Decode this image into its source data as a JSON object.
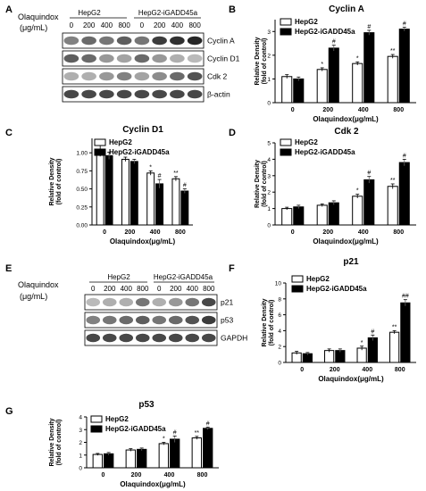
{
  "colors": {
    "hepg2": "#ffffff",
    "gadd": "#000000",
    "axis": "#000000"
  },
  "panel_letters": [
    "A",
    "B",
    "C",
    "D",
    "E",
    "F",
    "G"
  ],
  "blot_A": {
    "treatment_label": "Olaquindox",
    "unit_label": "(μg/mL)",
    "group_labels": [
      "HepG2",
      "HepG2-iGADD45a"
    ],
    "doses": [
      "0",
      "200",
      "400",
      "800",
      "0",
      "200",
      "400",
      "800"
    ],
    "bands": [
      "Cyclin A",
      "Cyclin D1",
      "Cdk 2",
      "β-actin"
    ]
  },
  "blot_E": {
    "treatment_label": "Olaquindox",
    "unit_label": "(μg/mL)",
    "group_labels": [
      "HepG2",
      "HepG2-iGADD45a"
    ],
    "doses": [
      "0",
      "200",
      "400",
      "800",
      "0",
      "200",
      "400",
      "800"
    ],
    "bands": [
      "p21",
      "p53",
      "GAPDH"
    ]
  },
  "chart_data": [
    {
      "panel": "B",
      "type": "bar",
      "title": "Cyclin A",
      "categories": [
        "0",
        "200",
        "400",
        "800"
      ],
      "xlabel": "Olaquindox(μg/mL)",
      "ylabel": "Relative Density",
      "ylabel2": "(fold of control)",
      "ylim": [
        0,
        3.5
      ],
      "yticks": [
        0,
        1,
        2,
        3
      ],
      "legend": "top-left",
      "series": [
        {
          "name": "HepG2",
          "values": [
            1.1,
            1.4,
            1.65,
            1.95
          ],
          "errors": [
            0.08,
            0.07,
            0.07,
            0.08
          ],
          "marks": [
            "",
            "*",
            "*",
            "**"
          ]
        },
        {
          "name": "HepG2-iGADD45a",
          "values": [
            1.0,
            2.3,
            2.95,
            3.1
          ],
          "errors": [
            0.08,
            0.12,
            0.1,
            0.08
          ],
          "marks": [
            "",
            "#",
            "#",
            "#"
          ]
        }
      ]
    },
    {
      "panel": "C",
      "type": "bar",
      "title": "Cyclin D1",
      "categories": [
        "0",
        "200",
        "400",
        "800"
      ],
      "xlabel": "Olaquindox(μg/mL)",
      "ylabel": "Relative Density",
      "ylabel2": "(fold of control)",
      "ylim": [
        0,
        1.2
      ],
      "yticks": [
        0,
        0.25,
        0.5,
        0.75,
        1.0
      ],
      "ytick_labels": [
        "0.00",
        "0.25",
        "0.50",
        "0.75",
        "1.00"
      ],
      "legend": "top-left",
      "series": [
        {
          "name": "HepG2",
          "values": [
            1.03,
            0.91,
            0.72,
            0.64
          ],
          "errors": [
            0.08,
            0.03,
            0.03,
            0.03
          ],
          "marks": [
            "",
            "",
            "*",
            "**"
          ]
        },
        {
          "name": "HepG2-iGADD45a",
          "values": [
            0.96,
            0.88,
            0.57,
            0.47
          ],
          "errors": [
            0.05,
            0.03,
            0.06,
            0.03
          ],
          "marks": [
            "",
            "",
            "#",
            "#"
          ]
        }
      ]
    },
    {
      "panel": "D",
      "type": "bar",
      "title": "Cdk 2",
      "categories": [
        "0",
        "200",
        "400",
        "800"
      ],
      "xlabel": "Olaquindox(μg/mL)",
      "ylabel": "Relative Density",
      "ylabel2": "(fold of control)",
      "ylim": [
        0,
        5
      ],
      "yticks": [
        0,
        1,
        2,
        3,
        4,
        5
      ],
      "legend": "top-left",
      "series": [
        {
          "name": "HepG2",
          "values": [
            1.0,
            1.2,
            1.75,
            2.35
          ],
          "errors": [
            0.08,
            0.08,
            0.12,
            0.15
          ],
          "marks": [
            "",
            "",
            "*",
            "**"
          ]
        },
        {
          "name": "HepG2-iGADD45a",
          "values": [
            1.1,
            1.35,
            2.75,
            3.8
          ],
          "errors": [
            0.1,
            0.12,
            0.2,
            0.2
          ],
          "marks": [
            "",
            "",
            "#",
            "#"
          ]
        }
      ]
    },
    {
      "panel": "F",
      "type": "bar",
      "title": "p21",
      "categories": [
        "0",
        "200",
        "400",
        "800"
      ],
      "xlabel": "Olaquindox(μg/mL)",
      "ylabel": "Relative Density",
      "ylabel2": "(fold of control)",
      "ylim": [
        0,
        10
      ],
      "yticks": [
        0,
        2,
        4,
        6,
        8,
        10
      ],
      "legend": "top-left",
      "series": [
        {
          "name": "HepG2",
          "values": [
            1.2,
            1.5,
            1.8,
            3.8
          ],
          "errors": [
            0.2,
            0.2,
            0.25,
            0.2
          ],
          "marks": [
            "",
            "",
            "*",
            "**"
          ]
        },
        {
          "name": "HepG2-iGADD45a",
          "values": [
            1.1,
            1.5,
            3.1,
            7.5
          ],
          "errors": [
            0.15,
            0.2,
            0.35,
            0.4
          ],
          "marks": [
            "",
            "",
            "#",
            "##"
          ]
        }
      ]
    },
    {
      "panel": "G",
      "type": "bar",
      "title": "p53",
      "categories": [
        "0",
        "200",
        "400",
        "800"
      ],
      "xlabel": "Olaquindox(μg/mL)",
      "ylabel": "Relative Density",
      "ylabel2": "(fold of control)",
      "ylim": [
        0,
        4
      ],
      "yticks": [
        0,
        1,
        2,
        3,
        4
      ],
      "legend": "top-left",
      "series": [
        {
          "name": "HepG2",
          "values": [
            1.05,
            1.4,
            1.9,
            2.35
          ],
          "errors": [
            0.08,
            0.1,
            0.1,
            0.12
          ],
          "marks": [
            "",
            "",
            "*",
            "**"
          ]
        },
        {
          "name": "HepG2-iGADD45a",
          "values": [
            1.1,
            1.45,
            2.25,
            3.1
          ],
          "errors": [
            0.1,
            0.1,
            0.25,
            0.1
          ],
          "marks": [
            "",
            "",
            "#",
            "#"
          ]
        }
      ]
    }
  ]
}
